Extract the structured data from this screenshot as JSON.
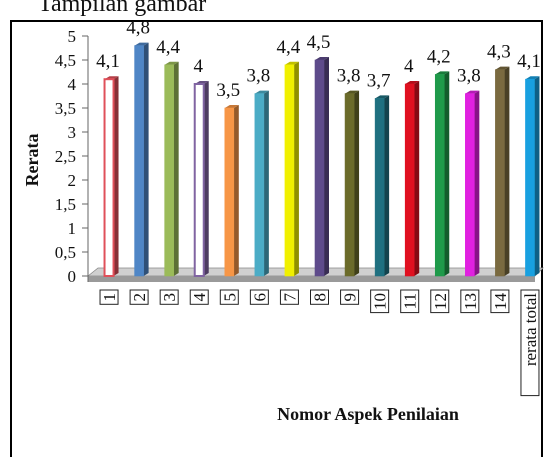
{
  "top_text": "Tampilan gambar",
  "chart_data": {
    "type": "bar",
    "title": "",
    "xlabel": "Nomor Aspek Penilaian",
    "ylabel": "Rerata",
    "ylim": [
      0,
      5
    ],
    "yticks": [
      "0",
      "0,5",
      "1",
      "1,5",
      "2",
      "2,5",
      "3",
      "3,5",
      "4",
      "4,5",
      "5"
    ],
    "grid": false,
    "legend": "none",
    "categories": [
      "1",
      "2",
      "3",
      "4",
      "5",
      "6",
      "7",
      "8",
      "9",
      "10",
      "11",
      "12",
      "13",
      "14",
      "rerata total"
    ],
    "values": [
      4.1,
      4.8,
      4.4,
      4.0,
      3.5,
      3.8,
      4.4,
      4.5,
      3.8,
      3.7,
      4.0,
      4.2,
      3.8,
      4.3,
      4.1
    ],
    "data_labels": [
      "4,1",
      "4,8",
      "4,4",
      "4",
      "3,5",
      "3,8",
      "4,4",
      "4,5",
      "3,8",
      "3,7",
      "4",
      "4,2",
      "3,8",
      "4,3",
      "4,1"
    ],
    "colors": [
      "#e0505a",
      "#4f86c6",
      "#9bbb59",
      "#8064a2",
      "#f79646",
      "#4bacc6",
      "#f0f000",
      "#5e4b8b",
      "#6b6b2a",
      "#1f7080",
      "#e01020",
      "#1f9a4a",
      "#e020e0",
      "#7a6a40",
      "#18a0e0"
    ],
    "bar_styles": [
      "outline",
      "solid",
      "solid",
      "outline",
      "solid",
      "solid",
      "solid",
      "solid",
      "solid",
      "solid",
      "solid",
      "solid",
      "solid",
      "solid",
      "solid"
    ]
  }
}
